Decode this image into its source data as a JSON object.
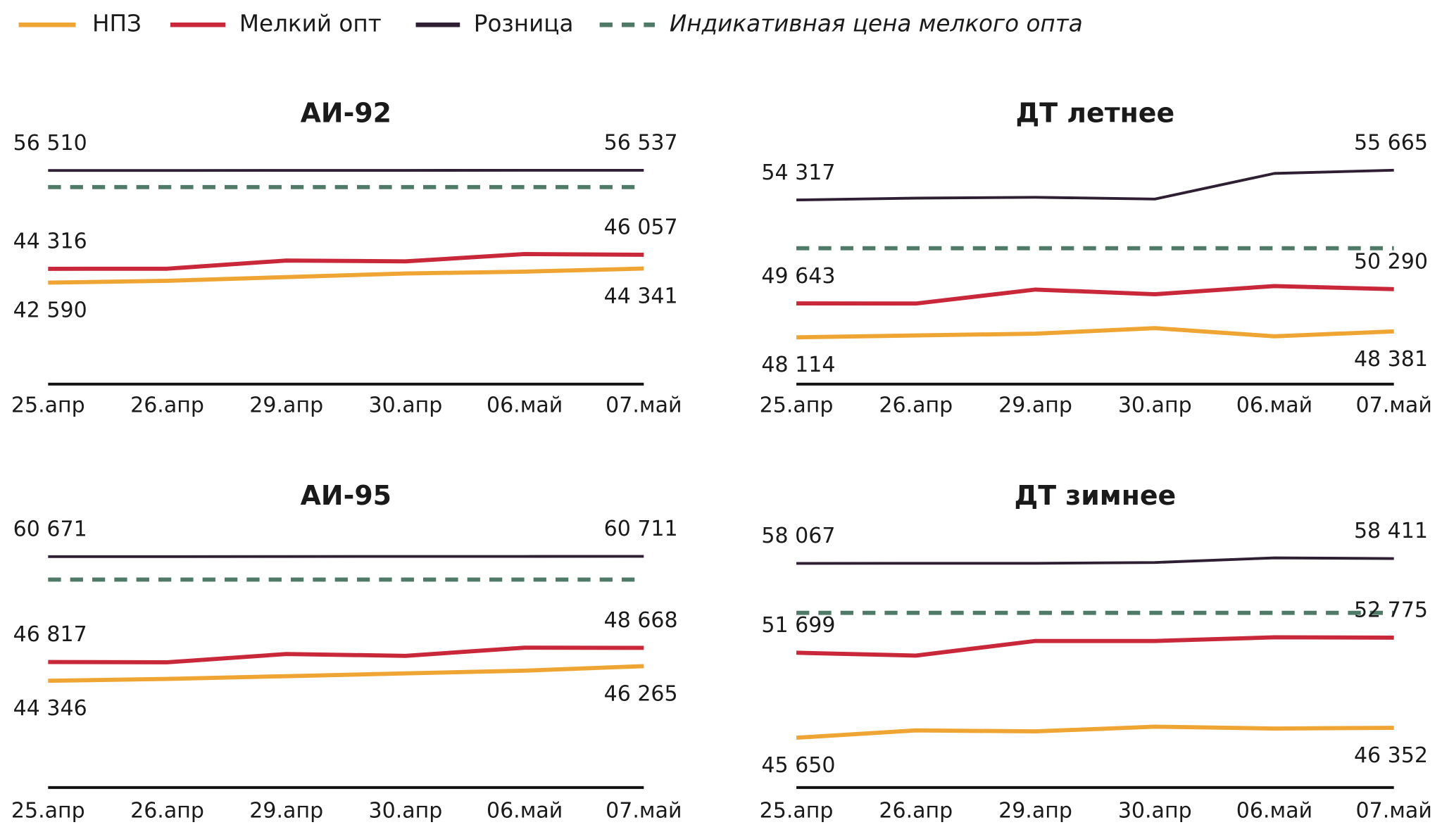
{
  "legend": [
    {
      "name": "НПЗ",
      "color": "#eea533",
      "dashed": false
    },
    {
      "name": "Мелкий опт",
      "color": "#c8283a",
      "dashed": false
    },
    {
      "name": "Розница",
      "color": "#2e1f33",
      "dashed": false
    },
    {
      "name": "Индикативная цена мелкого опта",
      "color": "#4f7a68",
      "dashed": true
    }
  ],
  "chart_data": [
    {
      "type": "line",
      "title": "АИ-92",
      "categories": [
        "25.апр",
        "26.апр",
        "29.апр",
        "30.апр",
        "06.май",
        "07.май"
      ],
      "ylim": [
        30000,
        61700
      ],
      "series": [
        {
          "values": [
            42590,
            42820,
            43280,
            43730,
            43960,
            44341
          ],
          "value_labels": [
            "42 590",
            null,
            null,
            null,
            null,
            "44 341"
          ]
        },
        {
          "values": [
            44316,
            44320,
            45340,
            45230,
            46140,
            46057
          ],
          "value_labels": [
            "44 316",
            null,
            null,
            null,
            null,
            "46 057"
          ]
        },
        {
          "values": [
            56510,
            56515,
            56520,
            56525,
            56530,
            56537
          ],
          "value_labels": [
            "56 510",
            null,
            null,
            null,
            null,
            "56 537"
          ]
        },
        {
          "values": [
            54450,
            54450,
            54450,
            54450,
            54450,
            54450
          ]
        }
      ]
    },
    {
      "type": "line",
      "title": "ДТ летнее",
      "categories": [
        "25.апр",
        "26.апр",
        "29.апр",
        "30.апр",
        "06.май",
        "07.май"
      ],
      "ylim": [
        46000,
        57540
      ],
      "series": [
        {
          "values": [
            48114,
            48200,
            48280,
            48530,
            48160,
            48381
          ],
          "value_labels": [
            "48 114",
            null,
            null,
            null,
            null,
            "48 381"
          ]
        },
        {
          "values": [
            49643,
            49640,
            50270,
            50060,
            50430,
            50290
          ],
          "value_labels": [
            "49 643",
            null,
            null,
            null,
            null,
            "50 290"
          ]
        },
        {
          "values": [
            54317,
            54400,
            54440,
            54360,
            55520,
            55665
          ],
          "value_labels": [
            "54 317",
            null,
            null,
            null,
            null,
            "55 665"
          ]
        },
        {
          "values": [
            52140,
            52140,
            52140,
            52140,
            52140,
            52140
          ]
        }
      ]
    },
    {
      "type": "line",
      "title": "АИ-95",
      "categories": [
        "25.апр",
        "26.апр",
        "29.апр",
        "30.апр",
        "06.май",
        "07.май"
      ],
      "ylim": [
        30300,
        66200
      ],
      "series": [
        {
          "values": [
            44346,
            44590,
            44950,
            45310,
            45680,
            46265
          ],
          "value_labels": [
            "44 346",
            null,
            null,
            null,
            null,
            "46 265"
          ]
        },
        {
          "values": [
            46817,
            46770,
            47860,
            47620,
            48700,
            48668
          ],
          "value_labels": [
            "46 817",
            null,
            null,
            null,
            null,
            "48 668"
          ]
        },
        {
          "values": [
            60671,
            60680,
            60690,
            60695,
            60700,
            60711
          ],
          "value_labels": [
            "60 671",
            null,
            null,
            null,
            null,
            "60 711"
          ]
        },
        {
          "values": [
            57650,
            57650,
            57650,
            57650,
            57650,
            57650
          ]
        }
      ]
    },
    {
      "type": "line",
      "title": "ДТ зимнее",
      "categories": [
        "25.апр",
        "26.апр",
        "29.апр",
        "30.апр",
        "06.май",
        "07.май"
      ],
      "ylim": [
        42100,
        61540
      ],
      "series": [
        {
          "values": [
            45650,
            46170,
            46100,
            46430,
            46300,
            46352
          ],
          "value_labels": [
            "45 650",
            null,
            null,
            null,
            null,
            "46 352"
          ]
        },
        {
          "values": [
            51699,
            51500,
            52540,
            52540,
            52800,
            52775
          ],
          "value_labels": [
            "51 699",
            null,
            null,
            null,
            null,
            "52 775"
          ]
        },
        {
          "values": [
            58067,
            58070,
            58070,
            58130,
            58460,
            58411
          ],
          "value_labels": [
            "58 067",
            null,
            null,
            null,
            null,
            "58 411"
          ]
        },
        {
          "values": [
            54540,
            54540,
            54540,
            54540,
            54540,
            54540
          ]
        }
      ]
    }
  ]
}
